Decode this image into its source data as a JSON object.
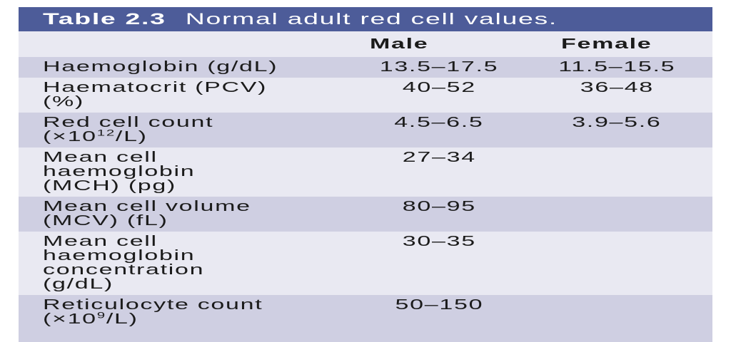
{
  "table": {
    "title_label": "Table 2.3",
    "title_text": "Normal adult red cell values.",
    "columns": {
      "male": "Male",
      "female": "Female"
    },
    "rows": [
      {
        "lines": [
          "Haemoglobin (g/dL)"
        ],
        "male": "13.5–17.5",
        "female": "11.5–15.5"
      },
      {
        "lines": [
          "Haematocrit (PCV)",
          "(%)"
        ],
        "male": "40–52",
        "female": "36–48"
      },
      {
        "lines": [
          "Red cell count"
        ],
        "sup_line": {
          "pre": "(×10",
          "sup": "12",
          "post": "/L)"
        },
        "male": "4.5–6.5",
        "female": "3.9–5.6"
      },
      {
        "lines": [
          "Mean cell",
          "haemoglobin",
          "(MCH) (pg)"
        ],
        "male": "27–34",
        "female": ""
      },
      {
        "lines": [
          "Mean cell volume",
          "(MCV) (fL)"
        ],
        "male": "80–95",
        "female": ""
      },
      {
        "lines": [
          "Mean cell",
          "haemoglobin",
          "concentration",
          "(g/dL)"
        ],
        "male": "30–35",
        "female": ""
      },
      {
        "lines": [
          "Reticulocyte count"
        ],
        "sup_line": {
          "pre": "(×10",
          "sup": "9",
          "post": "/L)"
        },
        "male": "50–150",
        "female": ""
      }
    ],
    "colors": {
      "header_bar": "#4d5c99",
      "row_dark": "#cfcfe2",
      "row_light": "#e9e9f2",
      "text": "#1b1b1b",
      "title_text": "#ffffff",
      "page_bg": "#ffffff"
    }
  }
}
